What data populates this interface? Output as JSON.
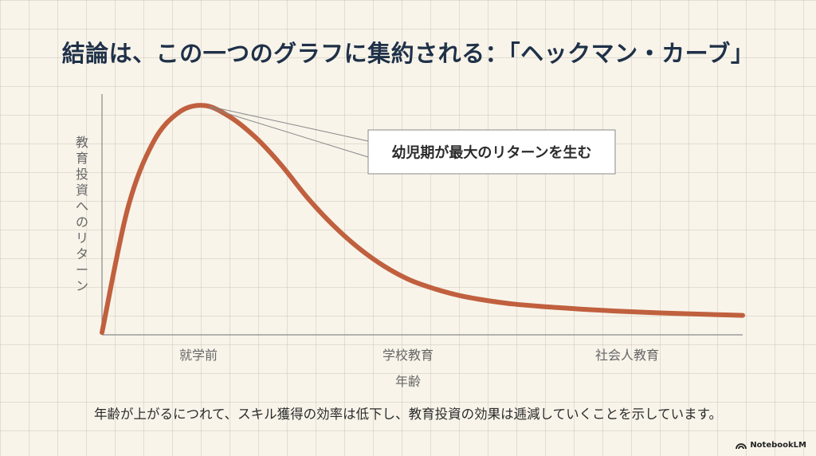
{
  "title": "結論は、この一つのグラフに集約される：「ヘックマン・カーブ」",
  "caption": "年齢が上がるにつれて、スキル獲得の効率は低下し、教育投資の効果は逓減していくことを示しています。",
  "brand": {
    "name": "NotebookLM",
    "icon": "notebooklm-logo-icon"
  },
  "colors": {
    "curve": "#c0603e",
    "title": "#1f3148",
    "axis": "#8a8a8a",
    "label": "#666666",
    "callout_border": "#8a8a8a"
  },
  "chart_data": {
    "type": "line",
    "title": "",
    "xlabel": "年齢",
    "ylabel": "教育投資へのリターン",
    "categories": [
      "就学前",
      "学校教育",
      "社会人教育"
    ],
    "x": [
      0,
      0.04,
      0.08,
      0.12,
      0.16,
      0.2,
      0.24,
      0.28,
      0.32,
      0.36,
      0.4,
      0.44,
      0.48,
      0.52,
      0.56,
      0.6,
      0.64,
      0.68,
      0.72,
      0.76,
      0.8,
      0.84,
      0.88,
      0.92,
      0.96,
      1.0
    ],
    "series": [
      {
        "values": [
          0.01,
          0.55,
          0.84,
          0.97,
          1.0,
          0.95,
          0.86,
          0.74,
          0.6,
          0.48,
          0.38,
          0.3,
          0.24,
          0.2,
          0.17,
          0.15,
          0.135,
          0.125,
          0.117,
          0.11,
          0.104,
          0.099,
          0.095,
          0.091,
          0.088,
          0.085
        ]
      }
    ],
    "xlim": [
      0,
      1
    ],
    "ylim": [
      0,
      1.05
    ],
    "grid": false,
    "legend": "none",
    "annotations": [
      {
        "text": "幼児期が最大のリターンを生む",
        "x": 0.16,
        "y": 1.0
      }
    ]
  }
}
